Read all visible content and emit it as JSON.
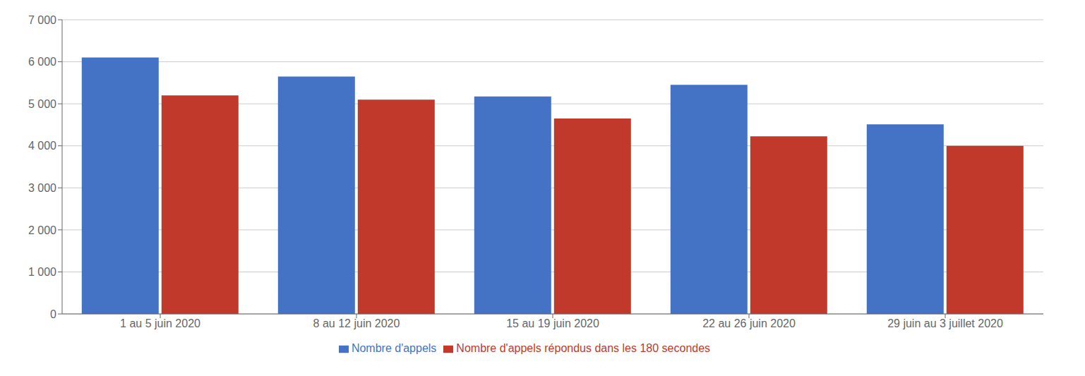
{
  "chart_data": {
    "type": "bar",
    "categories": [
      "1 au 5 juin 2020",
      "8 au 12 juin 2020",
      "15 au 19 juin 2020",
      "22 au 26 juin 2020",
      "29 juin au 3 juillet 2020"
    ],
    "series": [
      {
        "name": "Nombre d'appels",
        "color": "#4472C4",
        "values": [
          6100,
          5650,
          5175,
          5450,
          4510
        ]
      },
      {
        "name": "Nombre d'appels répondus dans les 180 secondes",
        "color": "#C0392B",
        "values": [
          5200,
          5100,
          4650,
          4225,
          4000
        ]
      }
    ],
    "ylim": [
      0,
      7000
    ],
    "yticks": [
      0,
      {
        "value": 1000,
        "label": "1 000"
      },
      {
        "value": 2000,
        "label": "2 000"
      },
      {
        "value": 3000,
        "label": "3 000"
      },
      {
        "value": 4000,
        "label": "4 000"
      },
      {
        "value": 5000,
        "label": "5 000"
      },
      {
        "value": 6000,
        "label": "6 000"
      },
      {
        "value": 7000,
        "label": "7 000"
      }
    ],
    "grid": true,
    "legend": "bottom"
  }
}
